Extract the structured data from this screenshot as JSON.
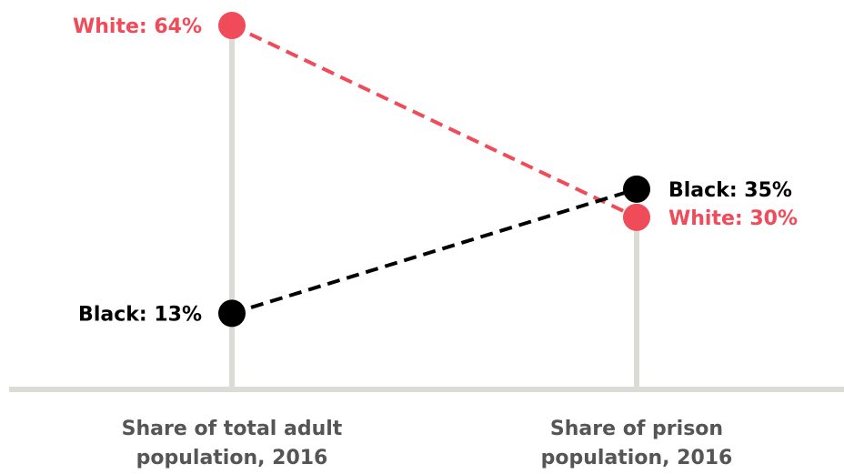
{
  "chart_data": {
    "type": "slope",
    "categories": [
      "Share of total adult population, 2016",
      "Share of prison population, 2016"
    ],
    "category_lines": [
      [
        "Share of total adult",
        "population, 2016"
      ],
      [
        "Share of prison",
        "population, 2016"
      ]
    ],
    "unit": "%",
    "series": [
      {
        "name": "White",
        "values": [
          64,
          30
        ],
        "labels": [
          "White: 64%",
          "White: 30%"
        ]
      },
      {
        "name": "Black",
        "values": [
          13,
          35
        ],
        "labels": [
          "Black: 13%",
          "Black: 35%"
        ]
      }
    ],
    "ylim": [
      0,
      64
    ],
    "colors": {
      "White": "#ef4b58",
      "Black": "#000000",
      "axis": "#dcdcd6",
      "category_text": "#555555"
    },
    "grid": false,
    "legend": "none"
  }
}
